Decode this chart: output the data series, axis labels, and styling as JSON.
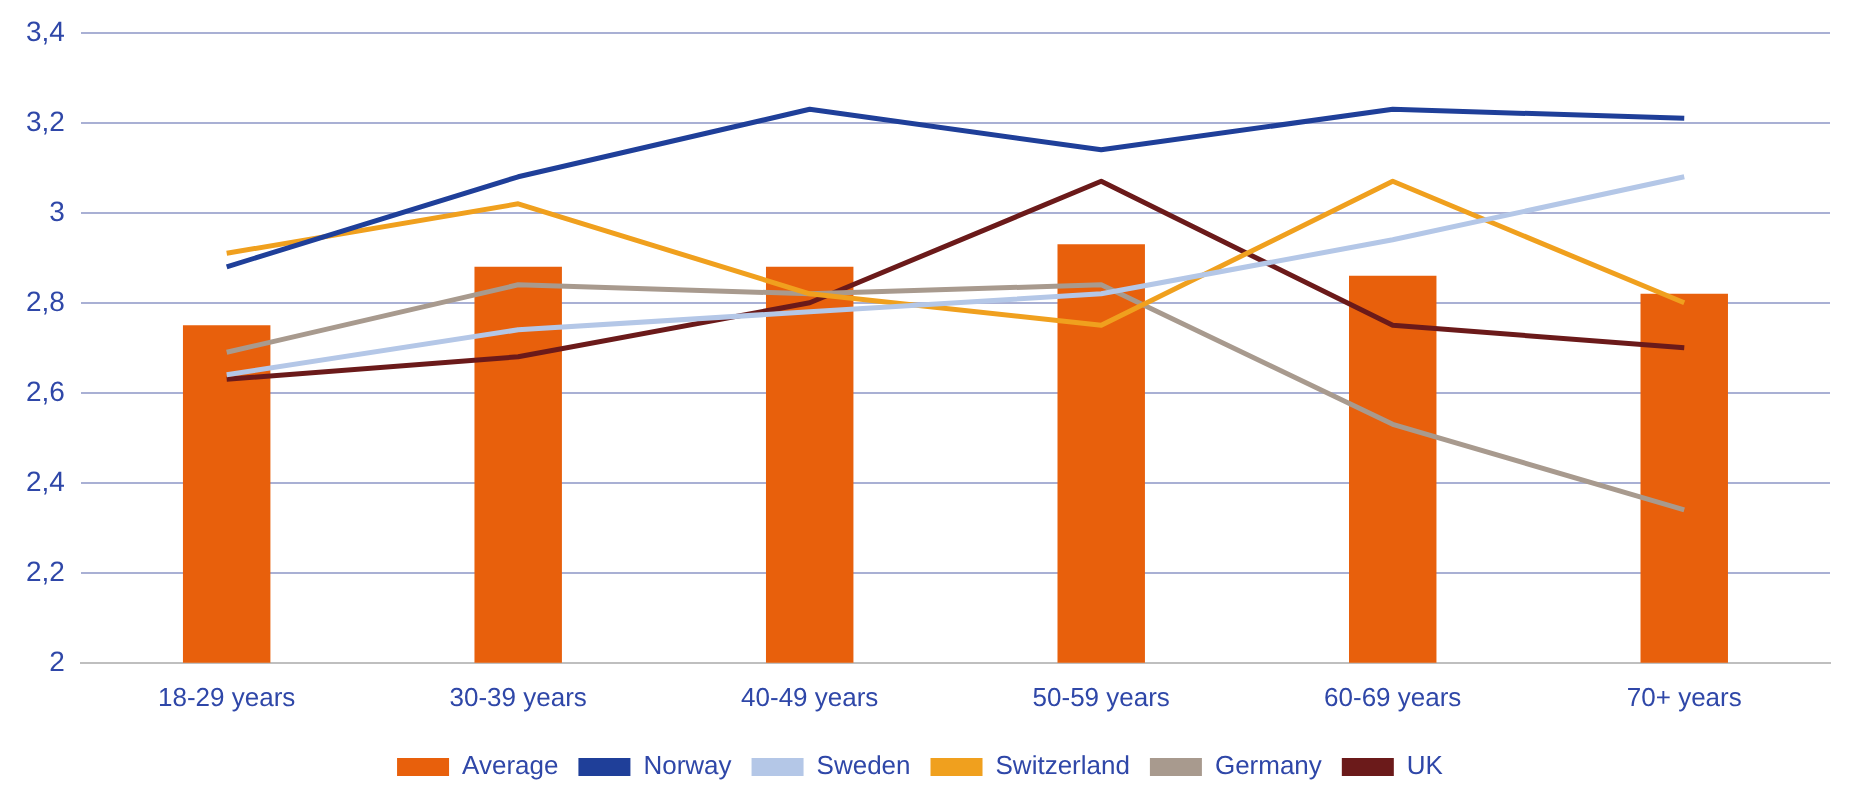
{
  "chart_data": {
    "type": "bar",
    "categories": [
      "18-29 years",
      "30-39 years",
      "40-49 years",
      "50-59 years",
      "60-69 years",
      "70+ years"
    ],
    "series": [
      {
        "name": "Average",
        "color": "#e8600c",
        "values": [
          2.75,
          2.88,
          2.88,
          2.93,
          2.86,
          2.82
        ]
      },
      {
        "name": "Norway",
        "type": "line",
        "color": "#1f3f99",
        "values": [
          2.88,
          3.08,
          3.23,
          3.14,
          3.23,
          3.21
        ]
      },
      {
        "name": "Sweden",
        "type": "line",
        "color": "#b4c7e7",
        "values": [
          2.64,
          2.74,
          2.78,
          2.82,
          2.94,
          3.08
        ]
      },
      {
        "name": "Switzerland",
        "type": "line",
        "color": "#f0a01e",
        "values": [
          2.91,
          3.02,
          2.82,
          2.75,
          3.07,
          2.8
        ]
      },
      {
        "name": "Germany",
        "type": "line",
        "color": "#a89a8e",
        "values": [
          2.69,
          2.84,
          2.82,
          2.84,
          2.53,
          2.34
        ]
      },
      {
        "name": "UK",
        "type": "line",
        "color": "#6b1a1a",
        "values": [
          2.63,
          2.68,
          2.8,
          3.07,
          2.75,
          2.7
        ]
      }
    ],
    "ylim": [
      2,
      3.4
    ],
    "yticks": [
      2,
      {
        "value": 2.2,
        "label": "2,2"
      },
      {
        "value": 2.4,
        "label": "2,4"
      },
      {
        "value": 2.6,
        "label": "2,6"
      },
      {
        "value": 2.8,
        "label": "2,8"
      },
      3,
      {
        "value": 3.2,
        "label": "3,2"
      },
      {
        "value": 3.4,
        "label": "3,4"
      }
    ],
    "grid": "y",
    "legend": "bottom",
    "marker": "none"
  }
}
